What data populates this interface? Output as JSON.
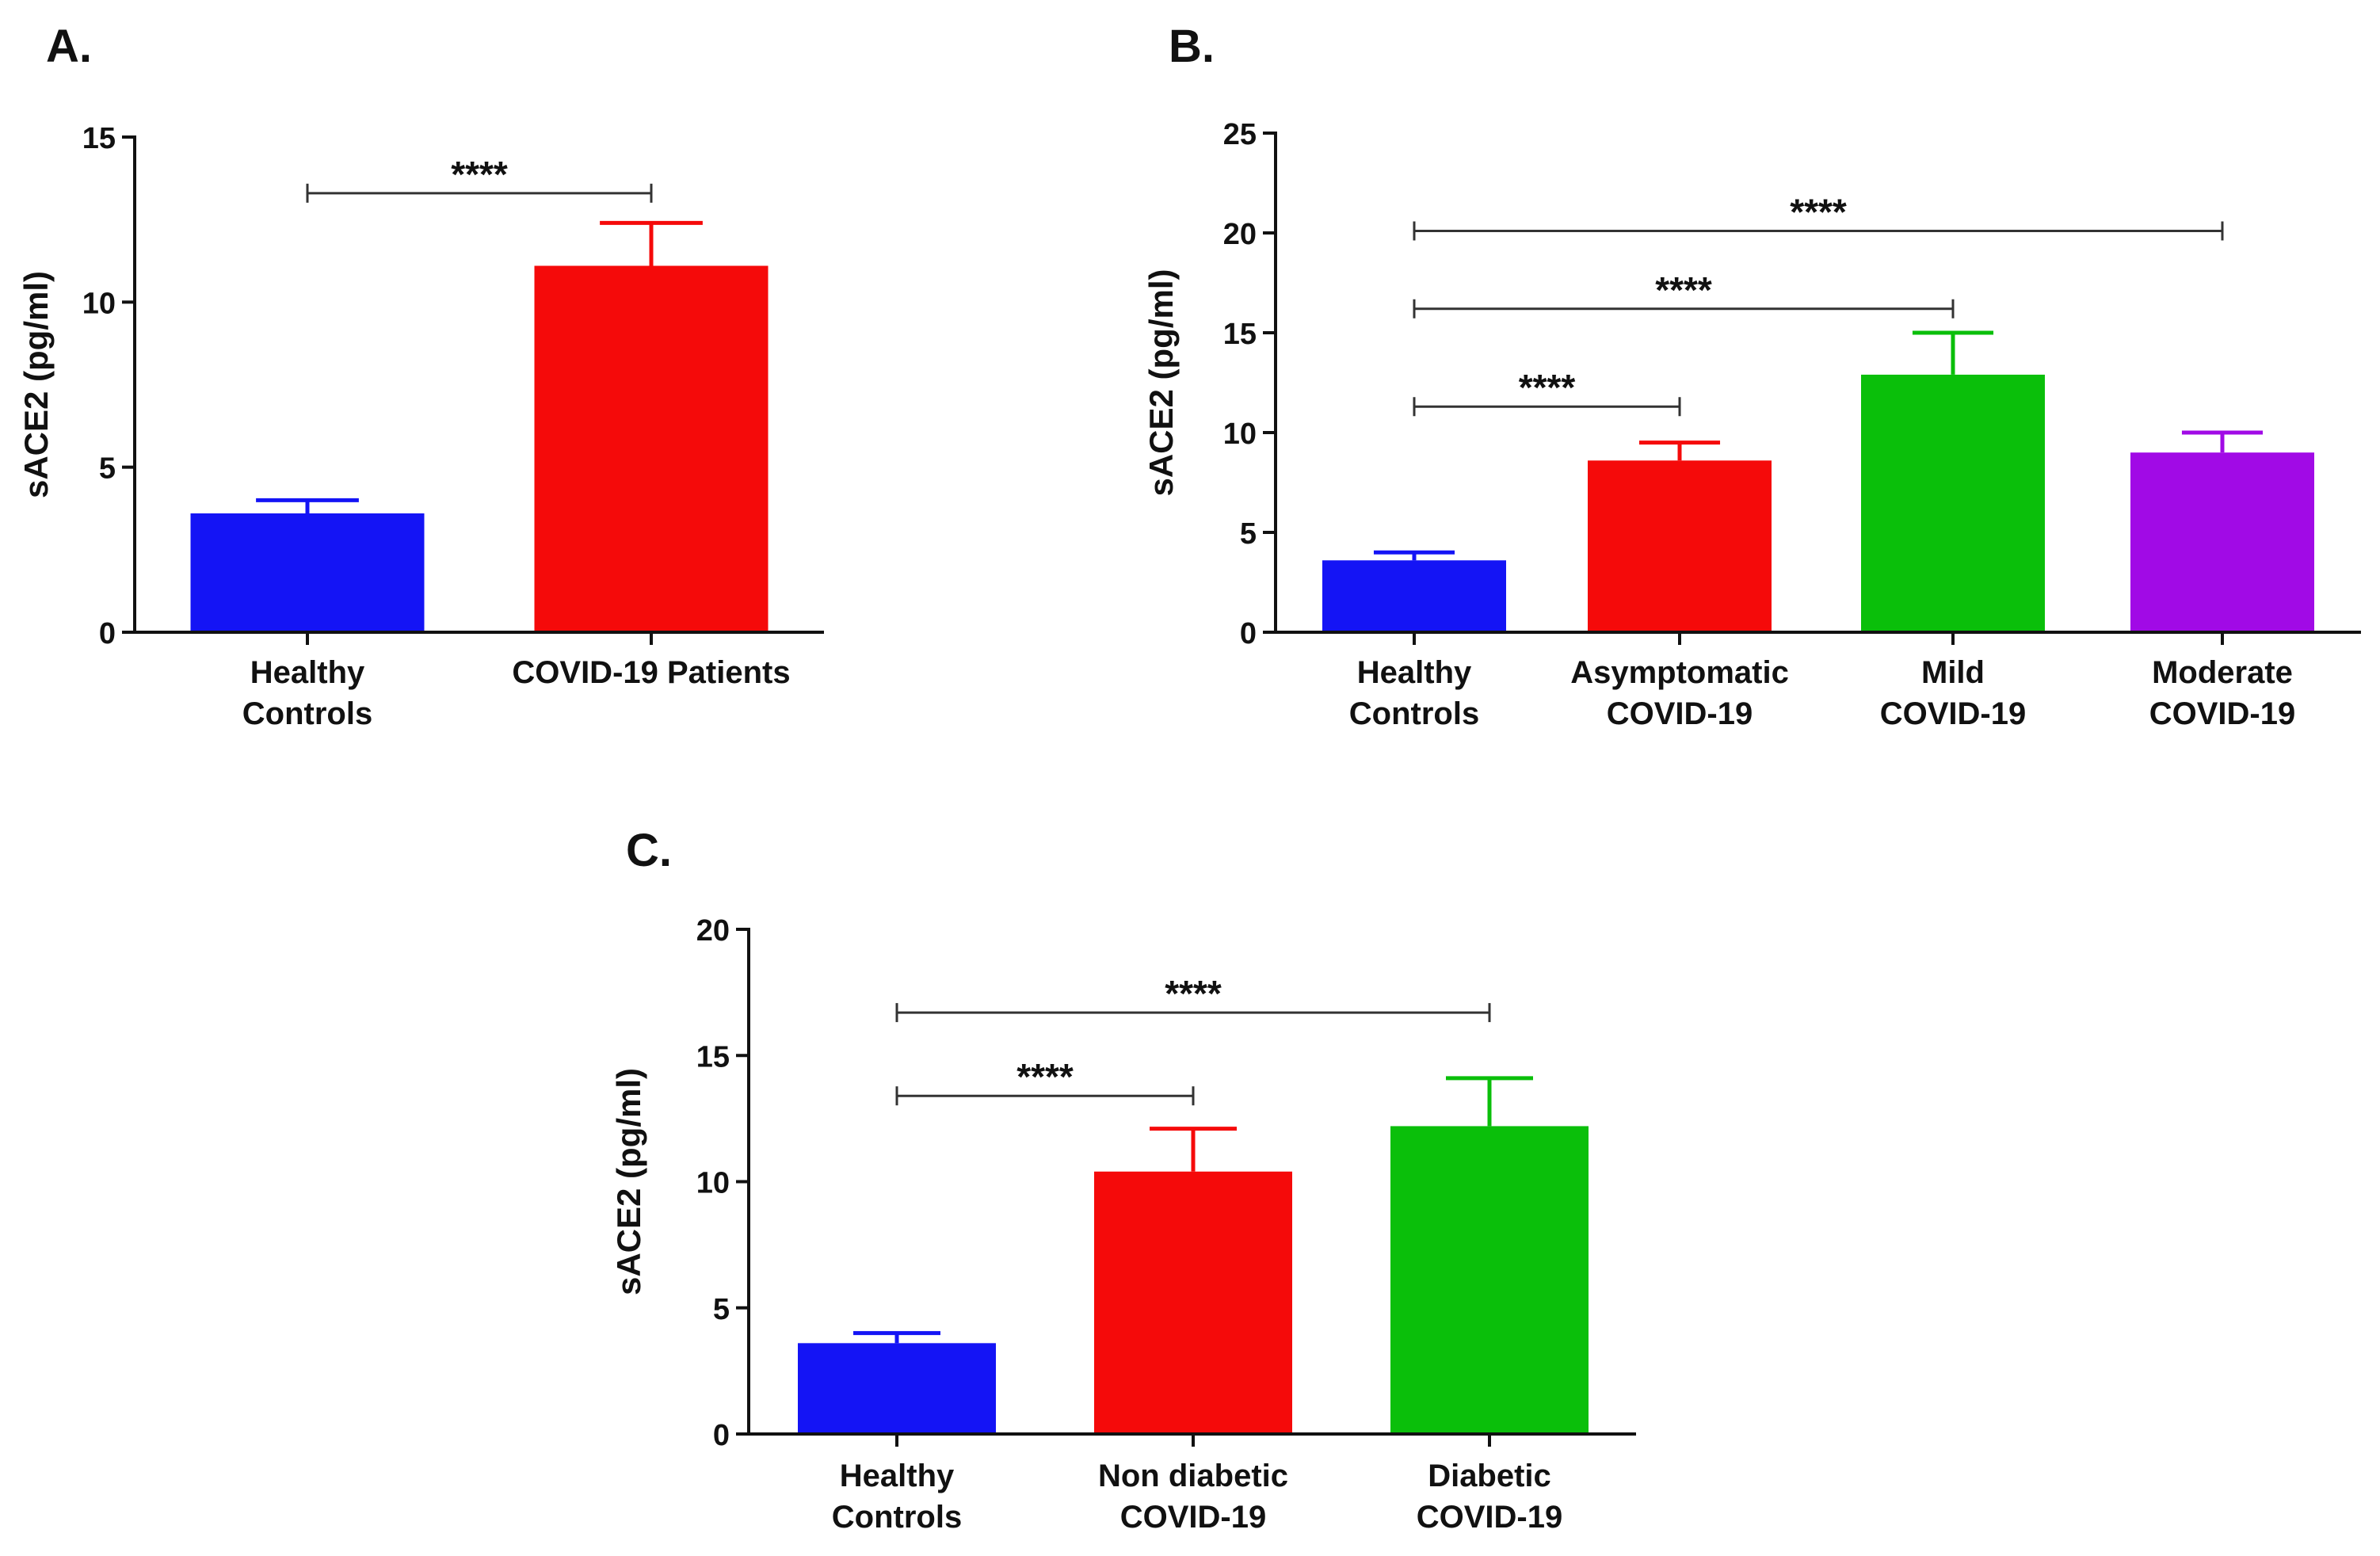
{
  "chart_data": [
    {
      "panel": "A.",
      "type": "bar",
      "ylabel": "sACE2 (pg/ml)",
      "ylim": [
        0,
        15
      ],
      "yticks": [
        0,
        5,
        10,
        15
      ],
      "categories": [
        {
          "lines": [
            "Healthy",
            "Controls"
          ]
        },
        {
          "lines": [
            "COVID-19 Patients"
          ]
        }
      ],
      "values": [
        3.6,
        11.1
      ],
      "errors": [
        0.4,
        1.3
      ],
      "colors": [
        "#1414f5",
        "#f50a0a"
      ],
      "significance": [
        {
          "from": 0,
          "to": 1,
          "label": "****",
          "y": 13.3
        }
      ]
    },
    {
      "panel": "B.",
      "type": "bar",
      "ylabel": "sACE2 (pg/ml)",
      "ylim": [
        0,
        25
      ],
      "yticks": [
        0,
        5,
        10,
        15,
        20,
        25
      ],
      "categories": [
        {
          "lines": [
            "Healthy",
            "Controls"
          ]
        },
        {
          "lines": [
            "Asymptomatic",
            "COVID-19"
          ]
        },
        {
          "lines": [
            "Mild",
            "COVID-19"
          ]
        },
        {
          "lines": [
            "Moderate",
            "COVID-19"
          ]
        }
      ],
      "values": [
        3.6,
        8.6,
        12.9,
        9.0
      ],
      "errors": [
        0.4,
        0.9,
        2.1,
        1.0
      ],
      "colors": [
        "#1414f5",
        "#f50a0a",
        "#0abf0a",
        "#a10ae6"
      ],
      "significance": [
        {
          "from": 0,
          "to": 1,
          "label": "****",
          "y": 11.3
        },
        {
          "from": 0,
          "to": 2,
          "label": "****",
          "y": 16.2
        },
        {
          "from": 0,
          "to": 3,
          "label": "****",
          "y": 20.1
        }
      ]
    },
    {
      "panel": "C.",
      "type": "bar",
      "ylabel": "sACE2 (pg/ml)",
      "ylim": [
        0,
        20
      ],
      "yticks": [
        0,
        5,
        10,
        15,
        20
      ],
      "categories": [
        {
          "lines": [
            "Healthy",
            "Controls"
          ]
        },
        {
          "lines": [
            "Non diabetic",
            "COVID-19"
          ]
        },
        {
          "lines": [
            "Diabetic",
            "COVID-19"
          ]
        }
      ],
      "values": [
        3.6,
        10.4,
        12.2
      ],
      "errors": [
        0.4,
        1.7,
        1.9
      ],
      "colors": [
        "#1414f5",
        "#f50a0a",
        "#0abf0a"
      ],
      "significance": [
        {
          "from": 0,
          "to": 1,
          "label": "****",
          "y": 13.4
        },
        {
          "from": 0,
          "to": 2,
          "label": "****",
          "y": 16.7
        }
      ]
    }
  ]
}
